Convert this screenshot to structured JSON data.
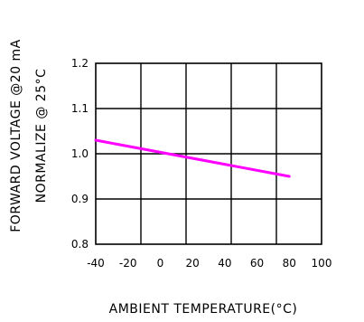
{
  "chart_data": {
    "type": "line",
    "title": "",
    "xlabel": "AMBIENT TEMPERATURE(°C)",
    "ylabel_lines": [
      "FORWARD VOLTAGE @20 mA",
      "NORMALIZE @ 25°C"
    ],
    "x_ticks": [
      "-40",
      "-20",
      "0",
      "20",
      "40",
      "60",
      "80",
      "100"
    ],
    "y_ticks": [
      "0.8",
      "0.9",
      "1.0",
      "1.1",
      "1.2"
    ],
    "xlim": [
      -40,
      100
    ],
    "ylim": [
      0.8,
      1.2
    ],
    "grid": true,
    "series": [
      {
        "color": "#ff00ff",
        "x": [
          -40,
          80
        ],
        "y": [
          1.03,
          0.95
        ]
      }
    ]
  }
}
